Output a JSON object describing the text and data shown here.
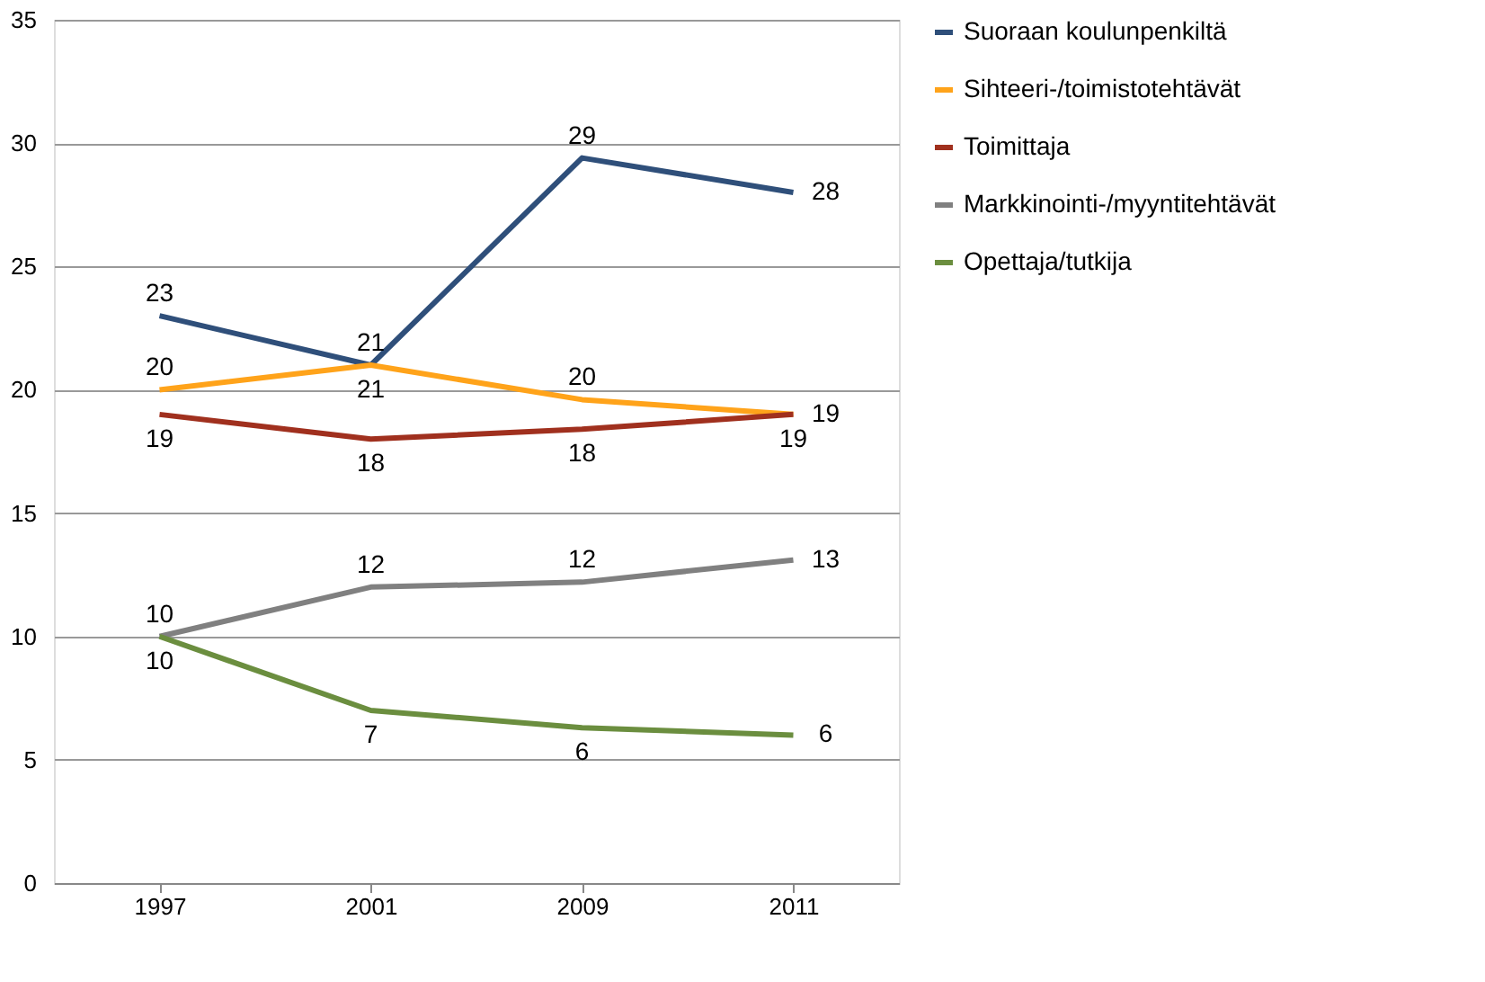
{
  "chart_data": {
    "type": "line",
    "categories": [
      "1997",
      "2001",
      "2009",
      "2011"
    ],
    "ylim": [
      0,
      35
    ],
    "yticks": [
      0,
      5,
      10,
      15,
      20,
      25,
      30,
      35
    ],
    "grid": "y",
    "legend": "right",
    "marker": "none",
    "line_style": "solid",
    "series": [
      {
        "name": "Suoraan koulunpenkiltä",
        "color": "#2f4f7a",
        "values": [
          23.0,
          21.0,
          29.4,
          28.0
        ],
        "value_labels": [
          "23",
          "21",
          "29",
          "28"
        ]
      },
      {
        "name": "Sihteeri-/toimistotehtävät",
        "color": "#ffa31a",
        "values": [
          20.0,
          21.0,
          19.6,
          19.0
        ],
        "value_labels": [
          "20",
          "21",
          "20",
          "19"
        ]
      },
      {
        "name": "Toimittaja",
        "color": "#a0301e",
        "values": [
          19.0,
          18.0,
          18.4,
          19.0
        ],
        "value_labels": [
          "19",
          "18",
          "18",
          "19"
        ]
      },
      {
        "name": "Markkinointi-/myyntitehtävät",
        "color": "#808080",
        "values": [
          10.0,
          12.0,
          12.2,
          13.1
        ],
        "value_labels": [
          "10",
          "12",
          "12",
          "13"
        ]
      },
      {
        "name": "Opettaja/tutkija",
        "color": "#6b8e3f",
        "values": [
          10.0,
          7.0,
          6.3,
          6.0
        ],
        "value_labels": [
          "10",
          "7",
          "6",
          "6"
        ]
      }
    ]
  }
}
